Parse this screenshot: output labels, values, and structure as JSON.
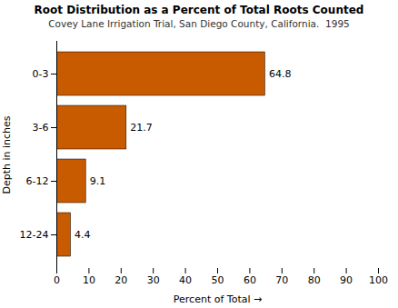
{
  "chart_data": {
    "type": "bar",
    "orientation": "horizontal",
    "title": "Root Distribution as a Percent of Total Roots Counted",
    "subtitle": "Covey Lane Irrigation Trial, San Diego County, California.  1995",
    "categories": [
      "0-3",
      "3-6",
      "6-12",
      "12-24"
    ],
    "values": [
      64.8,
      21.7,
      9.1,
      4.4
    ],
    "color": "#C85A00",
    "xlabel": "Percent of Total",
    "ylabel": "Depth in inches",
    "xlim": [
      0,
      100
    ],
    "xticks": [
      0,
      10,
      20,
      30,
      40,
      50,
      60,
      70,
      80,
      90,
      100
    ],
    "data_labels": true,
    "grid": false
  }
}
